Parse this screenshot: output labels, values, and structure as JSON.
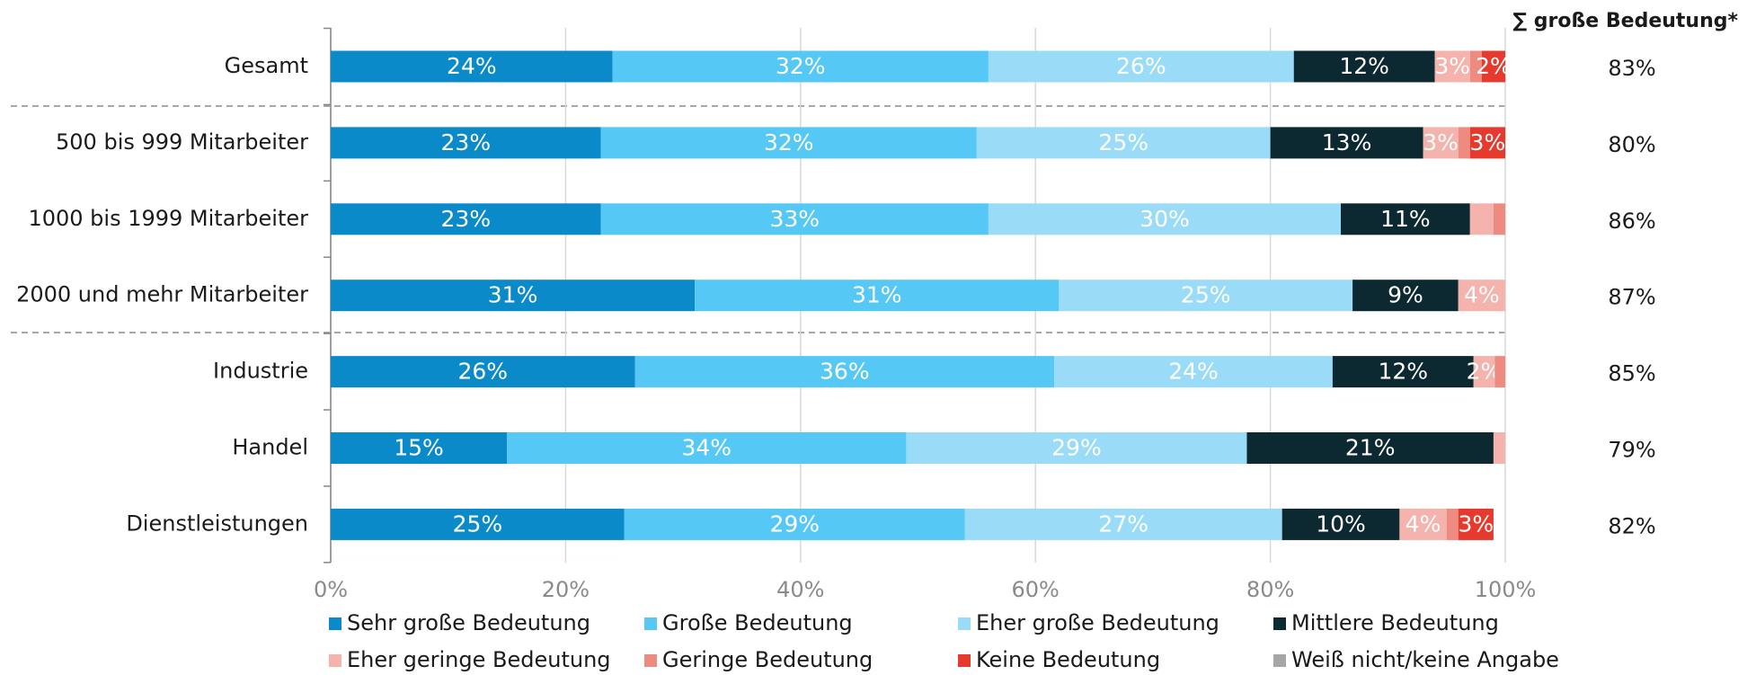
{
  "chart_data": {
    "type": "stacked-bar-horizontal",
    "categories": [
      "Gesamt",
      "500 bis 999 Mitarbeiter",
      "1000 bis 1999 Mitarbeiter",
      "2000 und mehr Mitarbeiter",
      "Industrie",
      "Handel",
      "Dienstleistungen"
    ],
    "series": [
      {
        "name": "Sehr große Bedeutung",
        "color": "#0a8ac9",
        "values": [
          24,
          23,
          23,
          31,
          25.9,
          15,
          25
        ],
        "value_labels": [
          "24%",
          "23%",
          "23%",
          "31%",
          "26%",
          "15%",
          "25%"
        ]
      },
      {
        "name": "Große Bedeutung",
        "color": "#55c8f5",
        "values": [
          32,
          32,
          33,
          31,
          35.7,
          34,
          29
        ],
        "value_labels": [
          "32%",
          "32%",
          "33%",
          "31%",
          "36%",
          "34%",
          "29%"
        ]
      },
      {
        "name": "Eher große Bedeutung",
        "color": "#9adcf7",
        "values": [
          26,
          25,
          30,
          25,
          23.7,
          29,
          27
        ],
        "value_labels": [
          "26%",
          "25%",
          "30%",
          "25%",
          "24%",
          "29%",
          "27%"
        ]
      },
      {
        "name": "Mittlere Bedeutung",
        "color": "#0c2830",
        "values": [
          12,
          13,
          11,
          9,
          12,
          21,
          10
        ],
        "value_labels": [
          "12%",
          "13%",
          "11%",
          "9%",
          "12%",
          "21%",
          "10%"
        ]
      },
      {
        "name": "Eher geringe Bedeutung",
        "color": "#f5b3ad",
        "values": [
          3,
          3,
          2,
          4,
          1.8,
          1,
          4
        ],
        "value_labels": [
          "3%",
          "3%",
          null,
          "4%",
          "2%",
          null,
          "4%"
        ]
      },
      {
        "name": "Geringe Bedeutung",
        "color": "#ee8b80",
        "values": [
          1,
          1,
          1,
          0,
          0.9,
          0,
          1
        ],
        "value_labels": [
          null,
          null,
          null,
          null,
          null,
          null,
          null
        ]
      },
      {
        "name": "Keine Bedeutung",
        "color": "#e63a2e",
        "values": [
          2,
          3,
          0,
          0,
          0,
          0,
          3
        ],
        "value_labels": [
          "2%",
          "3%",
          null,
          null,
          null,
          null,
          "3%"
        ]
      },
      {
        "name": "Weiß nicht/keine Angabe",
        "color": "#a6a6a6",
        "values": [
          0,
          0,
          0,
          0,
          0,
          0,
          0
        ],
        "value_labels": [
          null,
          null,
          null,
          null,
          null,
          null,
          null
        ]
      }
    ],
    "xlim": [
      0,
      100
    ],
    "xticks": [
      {
        "value": 0,
        "label": "0%"
      },
      {
        "value": 20,
        "label": "20%"
      },
      {
        "value": 40,
        "label": "40%"
      },
      {
        "value": 60,
        "label": "60%"
      },
      {
        "value": 80,
        "label": "80%"
      },
      {
        "value": 100,
        "label": "100%"
      }
    ],
    "grid": true,
    "sum_column": {
      "title": "∑ große Bedeutung*",
      "labels": [
        "83%",
        "80%",
        "86%",
        "87%",
        "85%",
        "79%",
        "82%"
      ]
    }
  }
}
